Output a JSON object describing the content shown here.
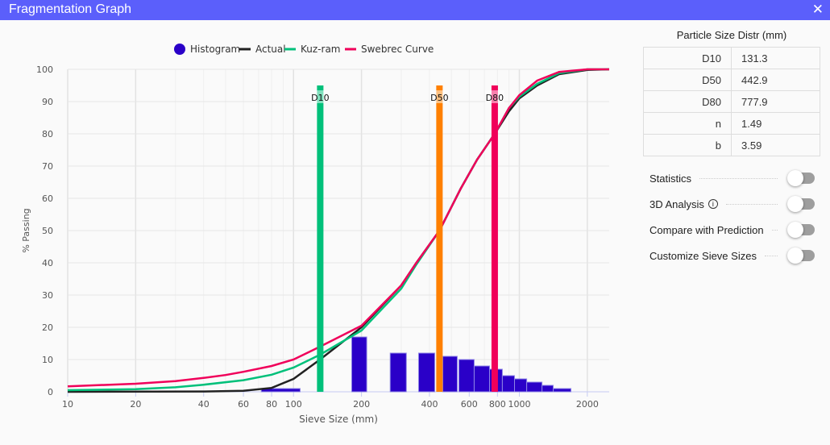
{
  "window": {
    "title": "Fragmentation Graph",
    "close": "✕"
  },
  "chart_data": {
    "type": "line",
    "title": "",
    "xlabel": "Sieve Size (mm)",
    "ylabel": "% Passing",
    "xscale": "log",
    "xlim": [
      10,
      2500
    ],
    "ylim": [
      0,
      100
    ],
    "xticks": [
      10,
      20,
      40,
      60,
      80,
      100,
      200,
      400,
      600,
      800,
      1000,
      2000
    ],
    "yticks": [
      0,
      10,
      20,
      30,
      40,
      50,
      60,
      70,
      80,
      90,
      100
    ],
    "legend": [
      {
        "name": "Histogram",
        "color": "#2a00c8",
        "shape": "circle"
      },
      {
        "name": "Actual",
        "color": "#222222"
      },
      {
        "name": "Kuz-ram",
        "color": "#00c07a"
      },
      {
        "name": "Swebrec Curve",
        "color": "#f0005a"
      }
    ],
    "legend_position": "top",
    "histogram": [
      [
        72,
        107,
        1
      ],
      [
        181,
        211,
        17
      ],
      [
        268,
        316,
        12
      ],
      [
        358,
        422,
        12
      ],
      [
        458,
        531,
        11
      ],
      [
        540,
        631,
        10
      ],
      [
        631,
        738,
        8
      ],
      [
        738,
        841,
        7
      ],
      [
        841,
        952,
        5
      ],
      [
        952,
        1078,
        4
      ],
      [
        1078,
        1260,
        3
      ],
      [
        1260,
        1413,
        2
      ],
      [
        1413,
        1693,
        1
      ]
    ],
    "series": [
      {
        "name": "Actual",
        "color": "#222222",
        "points": [
          [
            10,
            0
          ],
          [
            40,
            0.1
          ],
          [
            60,
            0.3
          ],
          [
            80,
            1.2
          ],
          [
            100,
            4
          ],
          [
            131,
            10
          ],
          [
            200,
            20
          ],
          [
            300,
            33
          ],
          [
            350,
            40
          ],
          [
            443,
            50
          ],
          [
            550,
            63
          ],
          [
            650,
            72
          ],
          [
            778,
            80
          ],
          [
            900,
            87
          ],
          [
            1000,
            91
          ],
          [
            1200,
            95
          ],
          [
            1500,
            98.5
          ],
          [
            2000,
            99.8
          ],
          [
            2500,
            100
          ]
        ]
      },
      {
        "name": "Kuz-ram",
        "color": "#00c07a",
        "points": [
          [
            10,
            0.5
          ],
          [
            20,
            0.8
          ],
          [
            30,
            1.4
          ],
          [
            40,
            2.2
          ],
          [
            60,
            3.6
          ],
          [
            80,
            5.3
          ],
          [
            100,
            7.5
          ],
          [
            131,
            11.5
          ],
          [
            200,
            19
          ],
          [
            300,
            32
          ],
          [
            350,
            39.5
          ],
          [
            443,
            50
          ],
          [
            550,
            63
          ],
          [
            650,
            72
          ],
          [
            778,
            80
          ],
          [
            900,
            88
          ],
          [
            1000,
            91.5
          ],
          [
            1200,
            95.5
          ],
          [
            1500,
            98.8
          ],
          [
            2000,
            100
          ],
          [
            2500,
            100
          ]
        ]
      },
      {
        "name": "Swebrec Curve",
        "color": "#f0005a",
        "points": [
          [
            10,
            1.7
          ],
          [
            20,
            2.5
          ],
          [
            30,
            3.3
          ],
          [
            40,
            4.3
          ],
          [
            50,
            5.2
          ],
          [
            60,
            6.2
          ],
          [
            80,
            8
          ],
          [
            100,
            10
          ],
          [
            131,
            14
          ],
          [
            200,
            20.5
          ],
          [
            300,
            33
          ],
          [
            350,
            40
          ],
          [
            443,
            50
          ],
          [
            550,
            63
          ],
          [
            650,
            72
          ],
          [
            778,
            80
          ],
          [
            900,
            88
          ],
          [
            1000,
            92
          ],
          [
            1200,
            96.5
          ],
          [
            1500,
            99.2
          ],
          [
            2000,
            100
          ],
          [
            2500,
            100
          ]
        ]
      }
    ],
    "markers": [
      {
        "label": "D10",
        "value": 131.3,
        "color": "#00c07a"
      },
      {
        "label": "D50",
        "value": 442.9,
        "color": "#ff8000"
      },
      {
        "label": "D80",
        "value": 777.9,
        "color": "#f0005a"
      }
    ]
  },
  "panel": {
    "title": "Particle Size Distr (mm)",
    "rows": [
      {
        "k": "D10",
        "v": "131.3"
      },
      {
        "k": "D50",
        "v": "442.9"
      },
      {
        "k": "D80",
        "v": "777.9"
      },
      {
        "k": "n",
        "v": "1.49"
      },
      {
        "k": "b",
        "v": "3.59"
      }
    ],
    "toggles": [
      {
        "label": "Statistics"
      },
      {
        "label": "3D Analysis",
        "info": "i"
      },
      {
        "label": "Compare with Prediction"
      },
      {
        "label": "Customize Sieve Sizes"
      }
    ]
  }
}
